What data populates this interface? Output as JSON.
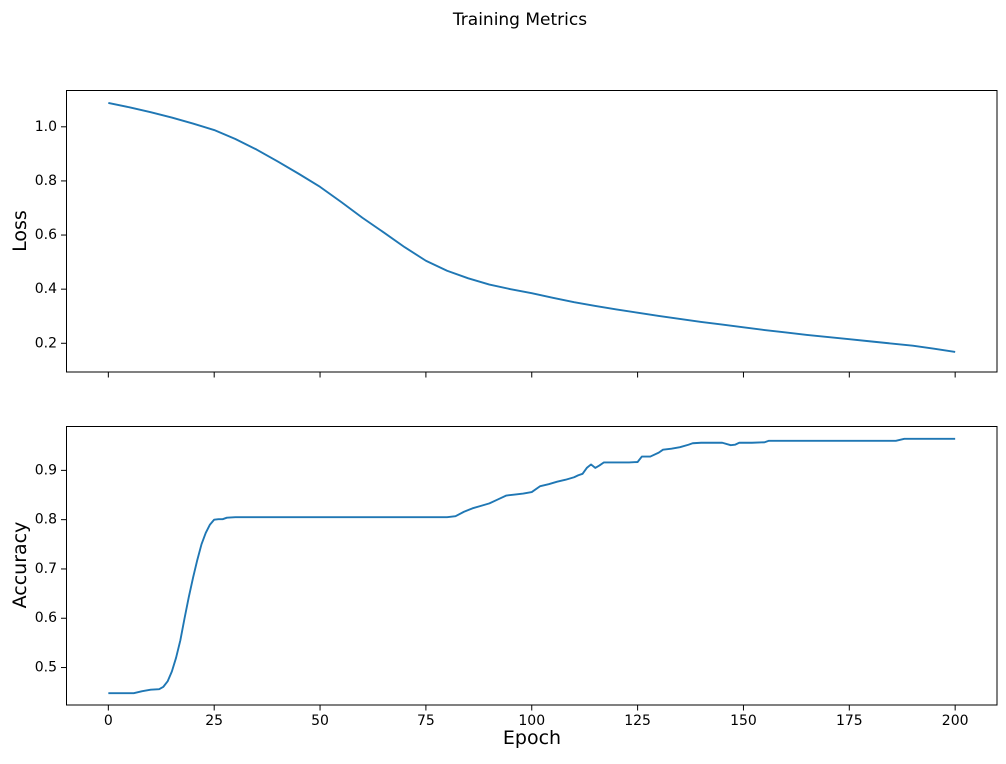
{
  "figure": {
    "title": "Training Metrics",
    "background": "#ffffff",
    "text_color": "#000000",
    "spine_color": "#000000"
  },
  "chart_data": [
    {
      "type": "line",
      "name": "loss",
      "title": "",
      "xlabel": "",
      "ylabel": "Loss",
      "line_color": "#1f77b4",
      "grid": false,
      "legend": "none",
      "xlim": [
        -10,
        210
      ],
      "ylim": [
        0.092,
        1.136
      ],
      "xtick_values": [
        0,
        25,
        50,
        75,
        100,
        125,
        150,
        175,
        200
      ],
      "xtick_labels": [
        "0",
        "25",
        "50",
        "75",
        "100",
        "125",
        "150",
        "175",
        "200"
      ],
      "xtick_labels_visible": false,
      "ytick_values": [
        0.2,
        0.4,
        0.6,
        0.8,
        1.0
      ],
      "ytick_labels": [
        "0.2",
        "0.4",
        "0.6",
        "0.8",
        "1.0"
      ],
      "x": [
        0,
        5,
        10,
        15,
        20,
        25,
        30,
        35,
        40,
        45,
        50,
        55,
        60,
        65,
        70,
        75,
        80,
        85,
        90,
        95,
        100,
        105,
        110,
        115,
        120,
        125,
        130,
        135,
        140,
        145,
        150,
        155,
        160,
        165,
        170,
        175,
        180,
        185,
        190,
        195,
        200
      ],
      "y": [
        1.088,
        1.072,
        1.054,
        1.034,
        1.012,
        0.988,
        0.955,
        0.916,
        0.872,
        0.826,
        0.778,
        0.722,
        0.664,
        0.61,
        0.555,
        0.505,
        0.468,
        0.44,
        0.417,
        0.4,
        0.385,
        0.368,
        0.352,
        0.338,
        0.325,
        0.313,
        0.301,
        0.29,
        0.279,
        0.269,
        0.259,
        0.249,
        0.24,
        0.231,
        0.223,
        0.215,
        0.207,
        0.199,
        0.191,
        0.18,
        0.168
      ]
    },
    {
      "type": "line",
      "name": "accuracy",
      "title": "",
      "xlabel": "Epoch",
      "ylabel": "Accuracy",
      "line_color": "#1f77b4",
      "grid": false,
      "legend": "none",
      "xlim": [
        -10,
        210
      ],
      "ylim": [
        0.423,
        0.99
      ],
      "xtick_values": [
        0,
        25,
        50,
        75,
        100,
        125,
        150,
        175,
        200
      ],
      "xtick_labels": [
        "0",
        "25",
        "50",
        "75",
        "100",
        "125",
        "150",
        "175",
        "200"
      ],
      "xtick_labels_visible": true,
      "ytick_values": [
        0.5,
        0.6,
        0.7,
        0.8,
        0.9
      ],
      "ytick_labels": [
        "0.5",
        "0.6",
        "0.7",
        "0.8",
        "0.9"
      ],
      "x": [
        0,
        2,
        4,
        6,
        8,
        10,
        12,
        13,
        14,
        15,
        16,
        17,
        18,
        19,
        20,
        21,
        22,
        23,
        24,
        25,
        26,
        27,
        28,
        30,
        35,
        40,
        45,
        50,
        55,
        60,
        65,
        70,
        75,
        80,
        82,
        84,
        86,
        88,
        90,
        92,
        94,
        96,
        98,
        100,
        102,
        104,
        106,
        108,
        110,
        111,
        112,
        113,
        114,
        115,
        116,
        117,
        120,
        123,
        125,
        126,
        128,
        130,
        131,
        133,
        135,
        137,
        138,
        140,
        145,
        147,
        148,
        149,
        152,
        155,
        156,
        160,
        165,
        170,
        175,
        180,
        186,
        188,
        190,
        195,
        200
      ],
      "y": [
        0.448,
        0.448,
        0.448,
        0.448,
        0.452,
        0.455,
        0.456,
        0.461,
        0.472,
        0.492,
        0.52,
        0.555,
        0.6,
        0.643,
        0.682,
        0.718,
        0.75,
        0.773,
        0.79,
        0.8,
        0.801,
        0.801,
        0.804,
        0.805,
        0.805,
        0.805,
        0.805,
        0.805,
        0.805,
        0.805,
        0.805,
        0.805,
        0.805,
        0.805,
        0.807,
        0.816,
        0.823,
        0.828,
        0.833,
        0.841,
        0.849,
        0.851,
        0.853,
        0.856,
        0.868,
        0.872,
        0.877,
        0.881,
        0.886,
        0.89,
        0.893,
        0.905,
        0.912,
        0.905,
        0.91,
        0.916,
        0.916,
        0.916,
        0.917,
        0.928,
        0.928,
        0.936,
        0.942,
        0.944,
        0.947,
        0.952,
        0.955,
        0.956,
        0.956,
        0.951,
        0.952,
        0.956,
        0.956,
        0.957,
        0.96,
        0.96,
        0.96,
        0.96,
        0.96,
        0.96,
        0.96,
        0.964,
        0.964,
        0.964,
        0.964
      ]
    }
  ]
}
